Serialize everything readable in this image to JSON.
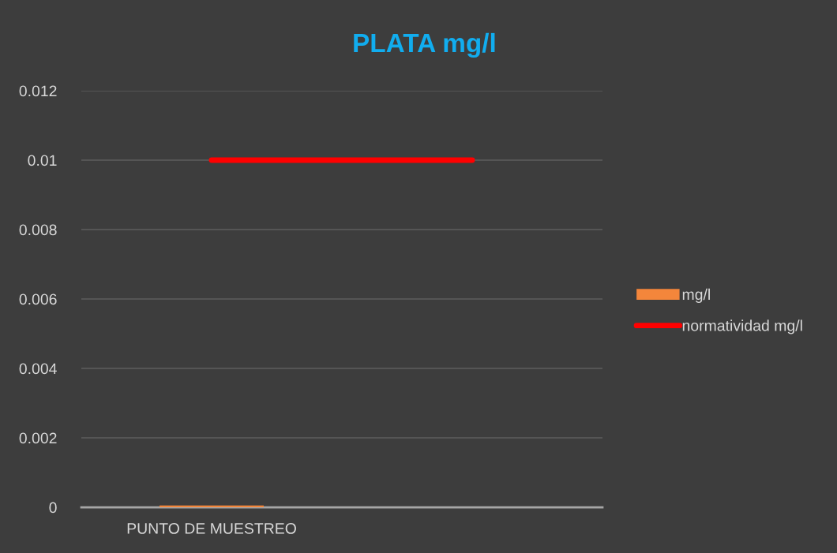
{
  "chart_data": {
    "type": "bar",
    "title": "PLATA mg/l",
    "categories": [
      "PUNTO DE MUESTREO",
      null
    ],
    "series": [
      {
        "name": "mg/l",
        "color": "#f4863b",
        "values": [
          5e-05,
          null
        ]
      },
      {
        "name": "normatividad mg/l",
        "type": "line",
        "color": "#ff0000",
        "values": [
          0.01,
          0.01
        ]
      }
    ],
    "ylim": [
      0,
      0.012
    ],
    "yticks": [
      0,
      0.002,
      0.004,
      0.006,
      0.008,
      0.01,
      0.012
    ],
    "grid": "y",
    "legend": "right",
    "marker": "none",
    "line_style": "solid"
  }
}
